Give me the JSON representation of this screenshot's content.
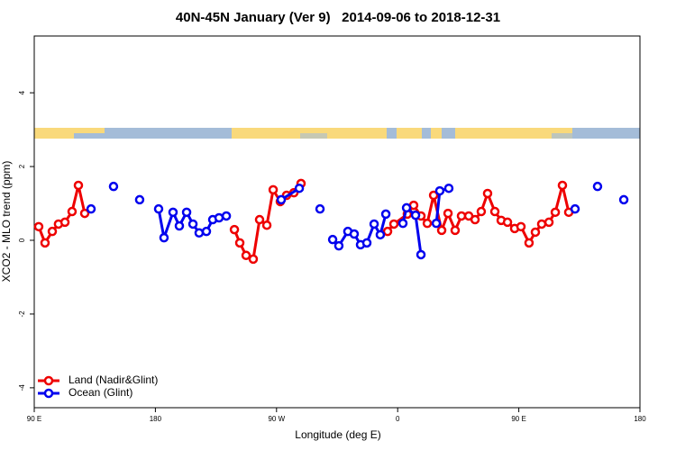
{
  "chart_data": {
    "type": "line",
    "title": "40N-45N January (Ver 9)   2014-09-06 to 2018-12-31",
    "x_label": "Longitude (deg E)",
    "y_label": "XCO2 - MLO trend (ppm)",
    "xlim": [
      90,
      540
    ],
    "xticks": [
      {
        "value": 90,
        "label": "90 E"
      },
      {
        "value": 180,
        "label": "180"
      },
      {
        "value": 270,
        "label": "90 W"
      },
      {
        "value": 360,
        "label": "0"
      },
      {
        "value": 450,
        "label": "90 E"
      },
      {
        "value": 540,
        "label": "180"
      }
    ],
    "ylim": [
      -4.54,
      5.54
    ],
    "yticks": [
      -4,
      -2,
      0,
      2,
      4
    ],
    "legend": "bottom-left",
    "series": [
      {
        "name": "Land (Nadir&Glint)",
        "color": "#ee0000",
        "x": [
          93.3,
          98,
          103.4,
          108,
          112.8,
          118.1,
          122.8,
          127.5,
          null,
          238.7,
          242.7,
          247.4,
          252.7,
          257.4,
          262.8,
          267.5,
          272.8,
          277.5,
          282.9,
          288.2,
          null,
          352.5,
          357.2,
          367.2,
          371.9,
          377.3,
          382,
          386.7,
          392.7,
          397.4,
          402.7,
          407.4,
          412.8,
          417.5,
          422.1,
          426.8,
          432.2,
          436.9,
          441.6,
          446.9,
          451.6,
          457.6,
          462.3,
          467,
          472.4,
          477.1,
          482.4,
          487.1
        ],
        "values": [
          0.37,
          -0.07,
          0.24,
          0.44,
          0.49,
          0.78,
          1.49,
          0.73,
          null,
          0.29,
          -0.07,
          -0.41,
          -0.51,
          0.56,
          0.41,
          1.37,
          1.05,
          1.22,
          1.29,
          1.54,
          null,
          0.24,
          0.44,
          0.71,
          0.95,
          0.66,
          0.46,
          1.22,
          0.27,
          0.73,
          0.27,
          0.66,
          0.66,
          0.56,
          0.78,
          1.27,
          0.78,
          0.54,
          0.49,
          0.32,
          0.37,
          -0.07,
          0.22,
          0.44,
          0.49,
          0.76,
          1.49,
          0.76
        ]
      },
      {
        "name": "Ocean (Glint)",
        "color": "#0000ee",
        "x": [
          132.2,
          null,
          148.9,
          null,
          168.3,
          null,
          182.4,
          186.4,
          193.1,
          197.8,
          203.2,
          207.9,
          212.5,
          217.9,
          222.6,
          227.3,
          232.7,
          null,
          273.5,
          286.9,
          null,
          302.3,
          null,
          311.7,
          316.3,
          323,
          327.7,
          332.4,
          337.1,
          342.5,
          347.1,
          351.2,
          null,
          363.9,
          366.6,
          373.3,
          377.3,
          null,
          388.7,
          391.3,
          398,
          null,
          491.8,
          null,
          508.5,
          null,
          528
        ],
        "values": [
          0.85,
          null,
          1.46,
          null,
          1.1,
          null,
          0.85,
          0.07,
          0.76,
          0.39,
          0.76,
          0.44,
          0.2,
          0.24,
          0.56,
          0.61,
          0.66,
          null,
          1.1,
          1.41,
          null,
          0.85,
          null,
          0.02,
          -0.15,
          0.24,
          0.17,
          -0.12,
          -0.07,
          0.44,
          0.15,
          0.71,
          null,
          0.46,
          0.88,
          0.68,
          -0.39,
          null,
          0.46,
          1.34,
          1.41,
          null,
          0.85,
          null,
          1.46,
          null,
          1.1
        ]
      }
    ]
  }
}
